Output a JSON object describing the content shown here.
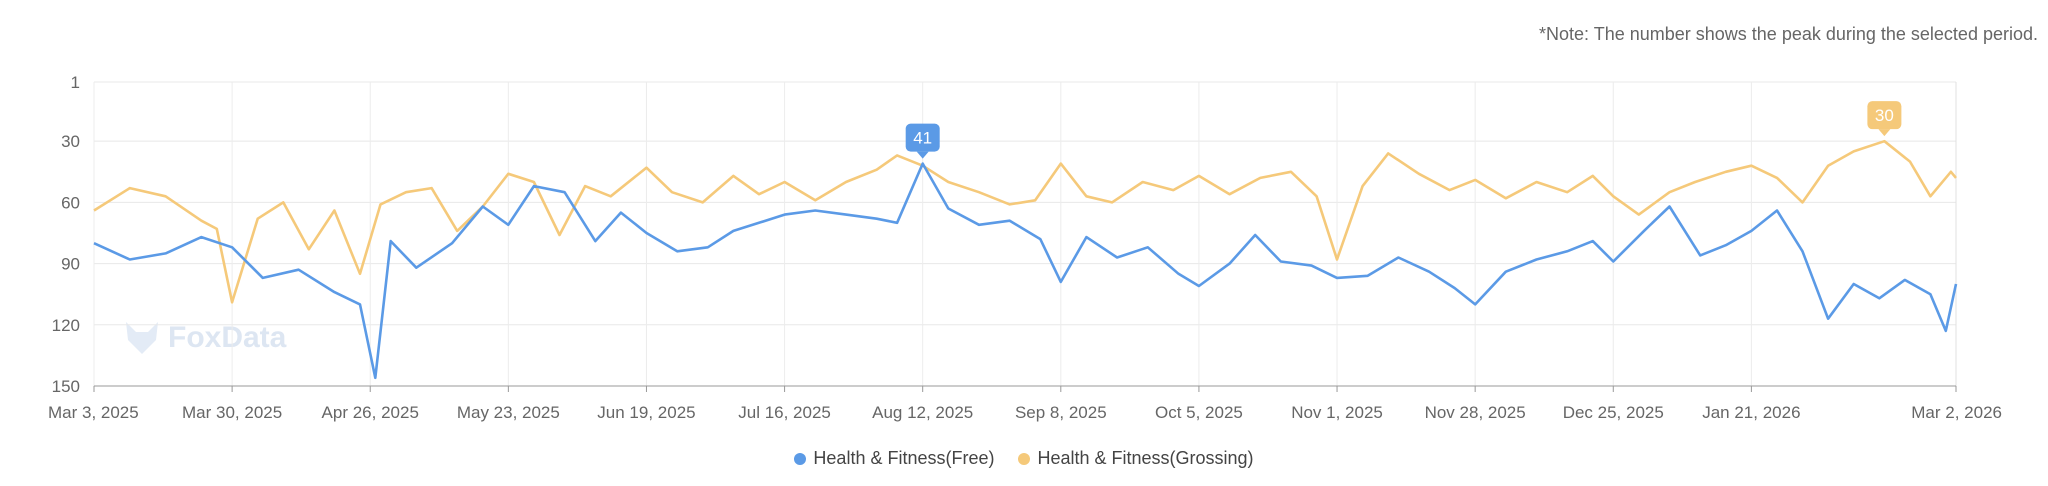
{
  "note": "*Note: The number shows the peak during the selected period.",
  "watermark": "FoxData",
  "chart_data": {
    "type": "line",
    "y_axis_reversed": true,
    "ylim": [
      1,
      150
    ],
    "yticks": [
      1,
      30,
      60,
      90,
      120,
      150
    ],
    "xlim": [
      "2025-03-03",
      "2026-03-02"
    ],
    "xticks": [
      "Mar 3, 2025",
      "Mar 30, 2025",
      "Apr 26, 2025",
      "May 23, 2025",
      "Jun 19, 2025",
      "Jul 16, 2025",
      "Aug 12, 2025",
      "Sep 8, 2025",
      "Oct 5, 2025",
      "Nov 1, 2025",
      "Nov 28, 2025",
      "Dec 25, 2025",
      "Jan 21, 2026",
      "Mar 2, 2026"
    ],
    "grid": true,
    "legend": "bottom-center",
    "series": [
      {
        "name": "Health & Fitness(Free)",
        "color": "#5b9ae6",
        "peak_label": "41",
        "peak_date": "2025-08-12",
        "points": [
          [
            "2025-03-03",
            80
          ],
          [
            "2025-03-10",
            88
          ],
          [
            "2025-03-17",
            85
          ],
          [
            "2025-03-24",
            77
          ],
          [
            "2025-03-30",
            82
          ],
          [
            "2025-04-05",
            97
          ],
          [
            "2025-04-12",
            93
          ],
          [
            "2025-04-19",
            104
          ],
          [
            "2025-04-24",
            110
          ],
          [
            "2025-04-27",
            146
          ],
          [
            "2025-04-30",
            79
          ],
          [
            "2025-05-05",
            92
          ],
          [
            "2025-05-12",
            80
          ],
          [
            "2025-05-18",
            62
          ],
          [
            "2025-05-23",
            71
          ],
          [
            "2025-05-28",
            52
          ],
          [
            "2025-06-03",
            55
          ],
          [
            "2025-06-09",
            79
          ],
          [
            "2025-06-14",
            65
          ],
          [
            "2025-06-19",
            75
          ],
          [
            "2025-06-25",
            84
          ],
          [
            "2025-07-01",
            82
          ],
          [
            "2025-07-06",
            74
          ],
          [
            "2025-07-11",
            70
          ],
          [
            "2025-07-16",
            66
          ],
          [
            "2025-07-22",
            64
          ],
          [
            "2025-07-28",
            66
          ],
          [
            "2025-08-03",
            68
          ],
          [
            "2025-08-07",
            70
          ],
          [
            "2025-08-12",
            41
          ],
          [
            "2025-08-17",
            63
          ],
          [
            "2025-08-23",
            71
          ],
          [
            "2025-08-29",
            69
          ],
          [
            "2025-09-04",
            78
          ],
          [
            "2025-09-08",
            99
          ],
          [
            "2025-09-13",
            77
          ],
          [
            "2025-09-19",
            87
          ],
          [
            "2025-09-25",
            82
          ],
          [
            "2025-10-01",
            95
          ],
          [
            "2025-10-05",
            101
          ],
          [
            "2025-10-11",
            90
          ],
          [
            "2025-10-16",
            76
          ],
          [
            "2025-10-21",
            89
          ],
          [
            "2025-10-27",
            91
          ],
          [
            "2025-11-01",
            97
          ],
          [
            "2025-11-07",
            96
          ],
          [
            "2025-11-13",
            87
          ],
          [
            "2025-11-19",
            94
          ],
          [
            "2025-11-24",
            102
          ],
          [
            "2025-11-28",
            110
          ],
          [
            "2025-12-04",
            94
          ],
          [
            "2025-12-10",
            88
          ],
          [
            "2025-12-16",
            84
          ],
          [
            "2025-12-21",
            79
          ],
          [
            "2025-12-25",
            89
          ],
          [
            "2025-12-31",
            74
          ],
          [
            "2026-01-05",
            62
          ],
          [
            "2026-01-11",
            86
          ],
          [
            "2026-01-16",
            81
          ],
          [
            "2026-01-21",
            74
          ],
          [
            "2026-01-26",
            64
          ],
          [
            "2026-01-31",
            84
          ],
          [
            "2026-02-05",
            117
          ],
          [
            "2026-02-10",
            100
          ],
          [
            "2026-02-15",
            107
          ],
          [
            "2026-02-20",
            98
          ],
          [
            "2026-02-25",
            105
          ],
          [
            "2026-02-28",
            123
          ],
          [
            "2026-03-02",
            100
          ]
        ]
      },
      {
        "name": "Health & Fitness(Grossing)",
        "color": "#f5c97a",
        "peak_label": "30",
        "peak_date": "2026-02-16",
        "points": [
          [
            "2025-03-03",
            64
          ],
          [
            "2025-03-10",
            53
          ],
          [
            "2025-03-17",
            57
          ],
          [
            "2025-03-24",
            69
          ],
          [
            "2025-03-27",
            73
          ],
          [
            "2025-03-30",
            109
          ],
          [
            "2025-04-04",
            68
          ],
          [
            "2025-04-09",
            60
          ],
          [
            "2025-04-14",
            83
          ],
          [
            "2025-04-19",
            64
          ],
          [
            "2025-04-24",
            95
          ],
          [
            "2025-04-28",
            61
          ],
          [
            "2025-05-03",
            55
          ],
          [
            "2025-05-08",
            53
          ],
          [
            "2025-05-13",
            74
          ],
          [
            "2025-05-18",
            62
          ],
          [
            "2025-05-23",
            46
          ],
          [
            "2025-05-28",
            50
          ],
          [
            "2025-06-02",
            76
          ],
          [
            "2025-06-07",
            52
          ],
          [
            "2025-06-12",
            57
          ],
          [
            "2025-06-19",
            43
          ],
          [
            "2025-06-24",
            55
          ],
          [
            "2025-06-30",
            60
          ],
          [
            "2025-07-06",
            47
          ],
          [
            "2025-07-11",
            56
          ],
          [
            "2025-07-16",
            50
          ],
          [
            "2025-07-22",
            59
          ],
          [
            "2025-07-28",
            50
          ],
          [
            "2025-08-03",
            44
          ],
          [
            "2025-08-07",
            37
          ],
          [
            "2025-08-12",
            42
          ],
          [
            "2025-08-17",
            50
          ],
          [
            "2025-08-23",
            55
          ],
          [
            "2025-08-29",
            61
          ],
          [
            "2025-09-03",
            59
          ],
          [
            "2025-09-08",
            41
          ],
          [
            "2025-09-13",
            57
          ],
          [
            "2025-09-18",
            60
          ],
          [
            "2025-09-24",
            50
          ],
          [
            "2025-09-30",
            54
          ],
          [
            "2025-10-05",
            47
          ],
          [
            "2025-10-11",
            56
          ],
          [
            "2025-10-17",
            48
          ],
          [
            "2025-10-23",
            45
          ],
          [
            "2025-10-28",
            57
          ],
          [
            "2025-11-01",
            88
          ],
          [
            "2025-11-06",
            52
          ],
          [
            "2025-11-11",
            36
          ],
          [
            "2025-11-17",
            46
          ],
          [
            "2025-11-23",
            54
          ],
          [
            "2025-11-28",
            49
          ],
          [
            "2025-12-04",
            58
          ],
          [
            "2025-12-10",
            50
          ],
          [
            "2025-12-16",
            55
          ],
          [
            "2025-12-21",
            47
          ],
          [
            "2025-12-25",
            57
          ],
          [
            "2025-12-30",
            66
          ],
          [
            "2026-01-05",
            55
          ],
          [
            "2026-01-10",
            50
          ],
          [
            "2026-01-16",
            45
          ],
          [
            "2026-01-21",
            42
          ],
          [
            "2026-01-26",
            48
          ],
          [
            "2026-01-31",
            60
          ],
          [
            "2026-02-05",
            42
          ],
          [
            "2026-02-10",
            35
          ],
          [
            "2026-02-16",
            30
          ],
          [
            "2026-02-21",
            40
          ],
          [
            "2026-02-25",
            57
          ],
          [
            "2026-03-01",
            45
          ],
          [
            "2026-03-02",
            48
          ]
        ]
      }
    ]
  }
}
